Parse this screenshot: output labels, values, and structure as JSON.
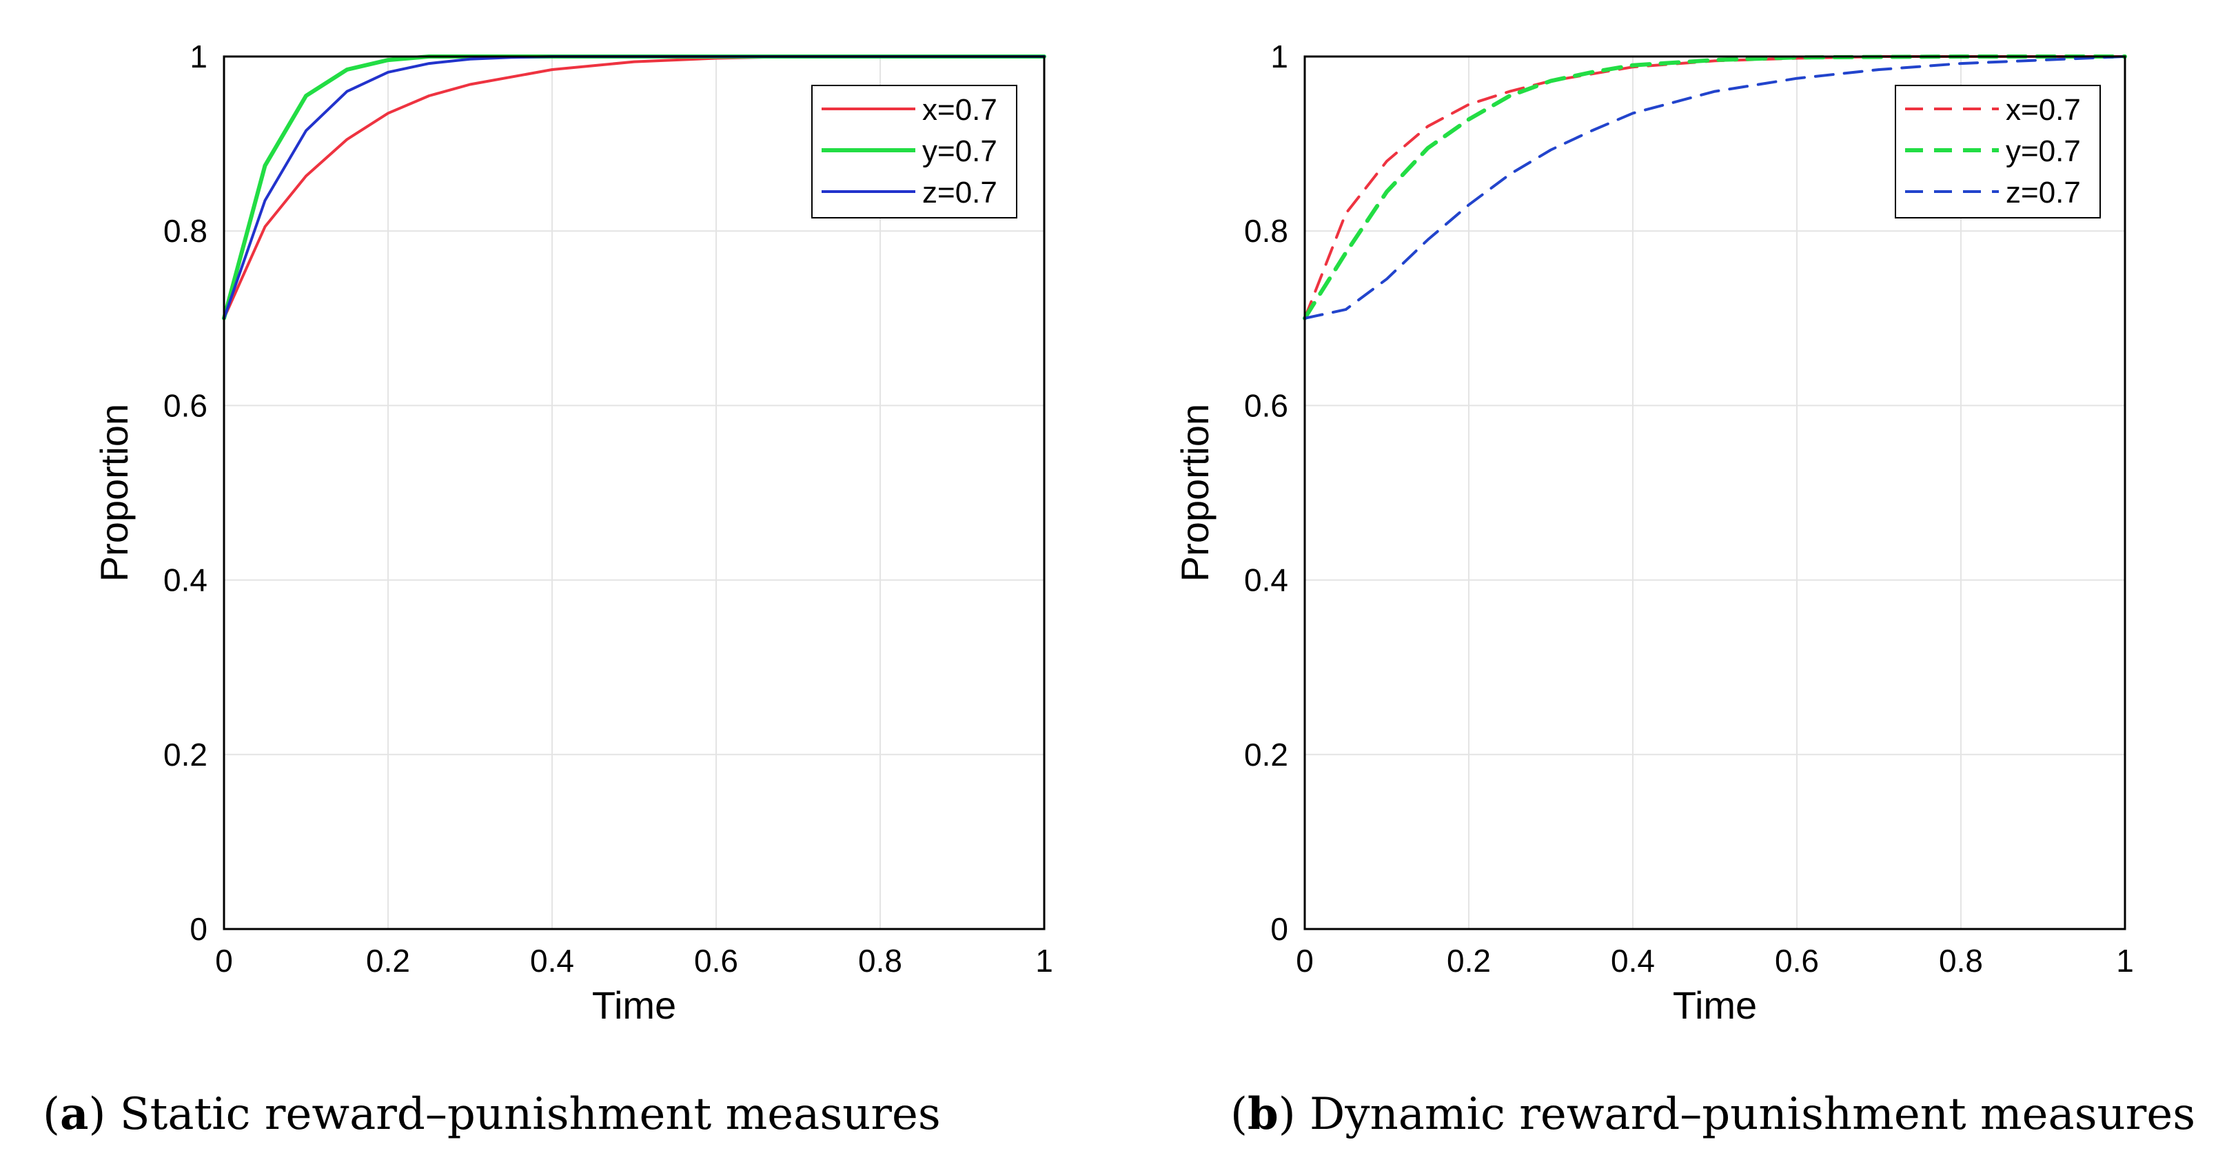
{
  "chart_data": [
    {
      "type": "line",
      "caption": {
        "prefix": "(",
        "letter": "a",
        "rest": ") Static reward–punishment measures"
      },
      "xlabel": "Time",
      "ylabel": "Proportion",
      "xlim": [
        0,
        1
      ],
      "ylim": [
        0,
        1
      ],
      "xticks": [
        "0",
        "0.2",
        "0.4",
        "0.6",
        "0.8",
        "1"
      ],
      "yticks": [
        "0",
        "0.2",
        "0.4",
        "0.6",
        "0.8",
        "1"
      ],
      "grid": true,
      "legend_position": "top-right",
      "series": [
        {
          "name": "x=0.7",
          "color": "#ee3340",
          "style": "solid",
          "x": [
            0,
            0.05,
            0.1,
            0.15,
            0.2,
            0.25,
            0.3,
            0.4,
            0.5,
            0.6,
            0.7,
            0.8,
            0.9,
            1.0
          ],
          "y": [
            0.7,
            0.805,
            0.863,
            0.905,
            0.935,
            0.955,
            0.968,
            0.985,
            0.994,
            0.998,
            1.0,
            1.0,
            1.0,
            1.0
          ]
        },
        {
          "name": "y=0.7",
          "color": "#22dd44",
          "style": "solid",
          "x": [
            0,
            0.05,
            0.1,
            0.15,
            0.2,
            0.25,
            0.3,
            0.4,
            0.6,
            0.8,
            1.0
          ],
          "y": [
            0.7,
            0.875,
            0.955,
            0.985,
            0.996,
            1.0,
            1.0,
            1.0,
            1.0,
            1.0,
            1.0
          ]
        },
        {
          "name": "z=0.7",
          "color": "#2233cc",
          "style": "solid",
          "x": [
            0,
            0.05,
            0.1,
            0.15,
            0.2,
            0.25,
            0.3,
            0.35,
            0.4,
            0.5,
            0.6,
            0.8,
            1.0
          ],
          "y": [
            0.7,
            0.835,
            0.915,
            0.96,
            0.982,
            0.992,
            0.997,
            0.999,
            1.0,
            1.0,
            1.0,
            1.0,
            1.0
          ]
        }
      ]
    },
    {
      "type": "line",
      "caption": {
        "prefix": "(",
        "letter": "b",
        "rest": ") Dynamic reward–punishment measures"
      },
      "xlabel": "Time",
      "ylabel": "Proportion",
      "xlim": [
        0,
        1
      ],
      "ylim": [
        0,
        1
      ],
      "xticks": [
        "0",
        "0.2",
        "0.4",
        "0.6",
        "0.8",
        "1"
      ],
      "yticks": [
        "0",
        "0.2",
        "0.4",
        "0.6",
        "0.8",
        "1"
      ],
      "grid": true,
      "legend_position": "top-right",
      "series": [
        {
          "name": "x=0.7",
          "color": "#ee3340",
          "style": "dashed",
          "x": [
            0,
            0.05,
            0.1,
            0.15,
            0.2,
            0.25,
            0.3,
            0.4,
            0.5,
            0.6,
            0.7,
            0.8,
            0.9,
            1.0
          ],
          "y": [
            0.7,
            0.82,
            0.88,
            0.92,
            0.945,
            0.96,
            0.972,
            0.988,
            0.995,
            0.998,
            1.0,
            1.0,
            1.0,
            1.0
          ]
        },
        {
          "name": "y=0.7",
          "color": "#22dd44",
          "style": "dashed",
          "x": [
            0,
            0.05,
            0.1,
            0.15,
            0.2,
            0.25,
            0.3,
            0.35,
            0.4,
            0.5,
            0.6,
            0.8,
            1.0
          ],
          "y": [
            0.7,
            0.775,
            0.845,
            0.895,
            0.928,
            0.955,
            0.972,
            0.982,
            0.99,
            0.996,
            0.999,
            1.0,
            1.0
          ]
        },
        {
          "name": "z=0.7",
          "color": "#2244cc",
          "style": "dashed",
          "x": [
            0,
            0.05,
            0.1,
            0.15,
            0.2,
            0.25,
            0.3,
            0.35,
            0.4,
            0.5,
            0.6,
            0.7,
            0.8,
            0.9,
            1.0
          ],
          "y": [
            0.7,
            0.71,
            0.745,
            0.79,
            0.83,
            0.865,
            0.893,
            0.915,
            0.935,
            0.96,
            0.975,
            0.985,
            0.992,
            0.996,
            1.0
          ]
        }
      ]
    }
  ]
}
